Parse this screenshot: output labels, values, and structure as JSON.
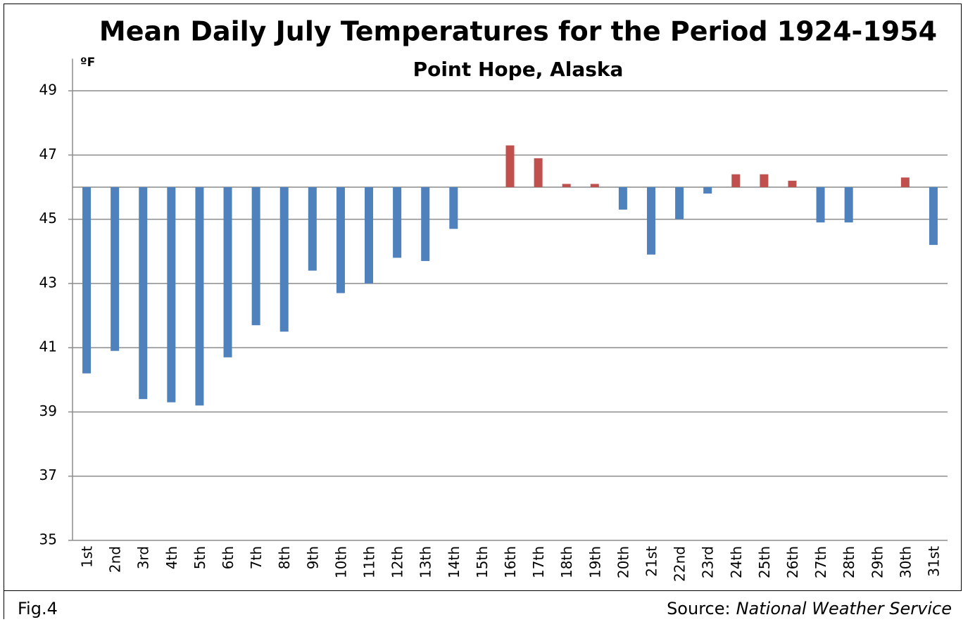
{
  "chart_data": {
    "type": "bar",
    "title": "Mean Daily July Temperatures for the Period 1924-1954",
    "subtitle": "Point Hope, Alaska",
    "y_label": "ºF",
    "categories": [
      "1st",
      "2nd",
      "3rd",
      "4th",
      "5th",
      "6th",
      "7th",
      "8th",
      "9th",
      "10th",
      "11th",
      "12th",
      "13th",
      "14th",
      "15th",
      "16th",
      "17th",
      "18th",
      "19th",
      "20th",
      "21st",
      "22nd",
      "23rd",
      "24th",
      "25th",
      "26th",
      "27th",
      "28th",
      "29th",
      "30th",
      "31st"
    ],
    "values": [
      40.2,
      40.9,
      39.4,
      39.3,
      39.2,
      40.7,
      41.7,
      41.5,
      43.4,
      42.7,
      43.0,
      43.8,
      43.7,
      44.7,
      46,
      47.3,
      46.9,
      46.1,
      46.1,
      45.3,
      43.9,
      45.0,
      45.8,
      46.4,
      46.4,
      46.2,
      44.9,
      44.9,
      46,
      46.3,
      44.2
    ],
    "baseline": 46,
    "colors": {
      "above": "#c0504d",
      "below": "#4f81bd"
    },
    "ylim": [
      35,
      50
    ],
    "yticks": [
      35,
      37,
      39,
      41,
      43,
      45,
      47,
      49
    ],
    "grid": true
  },
  "footer": {
    "figure": "Fig.4",
    "source_label": "Source:",
    "source_name": "National Weather Service"
  }
}
